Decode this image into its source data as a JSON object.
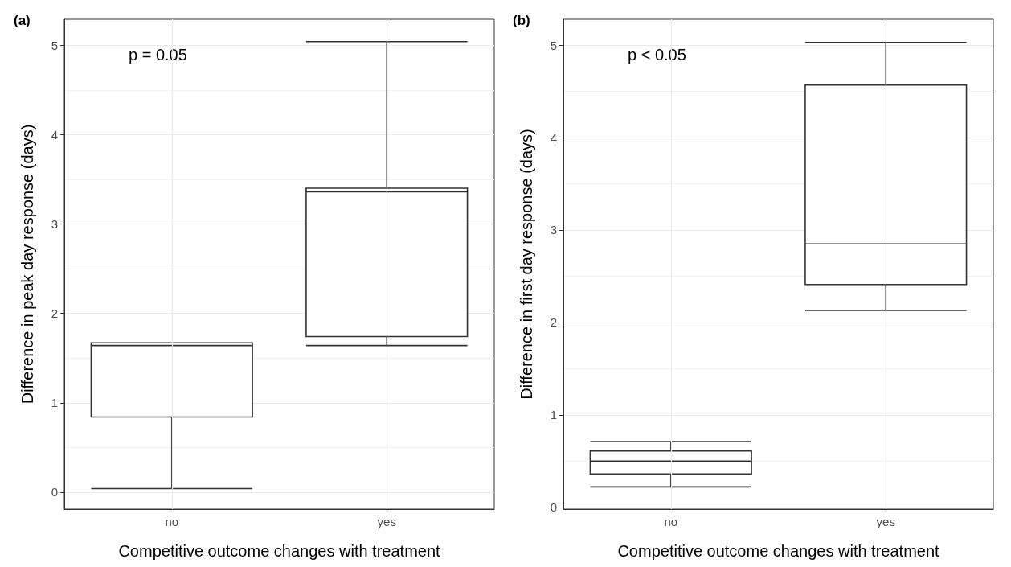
{
  "chart_data": [
    {
      "type": "box",
      "title": "(a)",
      "xlabel": "Competitive outcome changes with treatment",
      "ylabel": "Difference in peak day response (days)",
      "categories": [
        "no",
        "yes"
      ],
      "boxes": [
        {
          "low": 0.04,
          "q1": 0.84,
          "median": 1.64,
          "q3": 1.67,
          "high": 1.67
        },
        {
          "low": 1.64,
          "q1": 1.74,
          "median": 3.36,
          "q3": 3.4,
          "high": 5.04
        }
      ],
      "color": "#333333",
      "ylim": [
        -0.19,
        5.29
      ],
      "yticks": [
        0,
        1,
        2,
        3,
        4,
        5
      ],
      "grid": true,
      "annotations": [
        "p = 0.05"
      ]
    },
    {
      "type": "box",
      "title": "(b)",
      "xlabel": "Competitive outcome changes with treatment",
      "ylabel": "Difference in first day response (days)",
      "categories": [
        "no",
        "yes"
      ],
      "boxes": [
        {
          "low": 0.22,
          "q1": 0.36,
          "median": 0.5,
          "q3": 0.61,
          "high": 0.71
        },
        {
          "low": 2.13,
          "q1": 2.41,
          "median": 2.85,
          "q3": 4.57,
          "high": 5.03
        }
      ],
      "color": "#333333",
      "ylim": [
        -0.02,
        5.28
      ],
      "yticks": [
        0,
        1,
        2,
        3,
        4,
        5
      ],
      "grid": true,
      "annotations": [
        "p < 0.05"
      ]
    }
  ]
}
